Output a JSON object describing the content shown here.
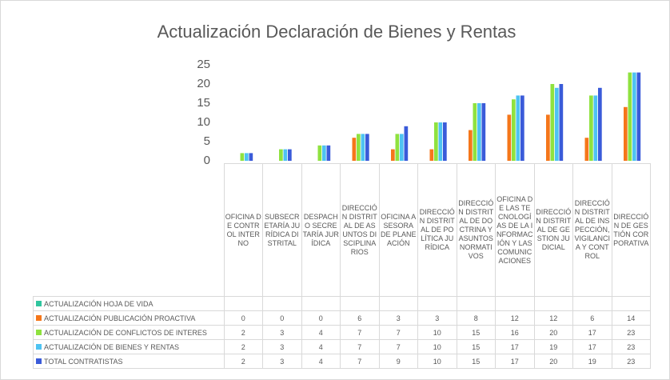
{
  "chart_data": {
    "type": "bar",
    "title": "Actualización Declaración de Bienes y Rentas",
    "categories": [
      "OFICINA DE CONTROL INTERNO",
      "SUBSECRETARÍA JURÍDICA DISTRITAL",
      "DESPACHO SECRETARÍA JURÍDICA",
      "DIRECCIÓN DISTRITAL DE ASUNTOS DISCIPLINARIOS",
      "OFICINA ASESORA DE PLANEACIÓN",
      "DIRECCIÓN DISTRITAL DE POLÍTICA JURÍDICA",
      "DIRECCIÓN DISTRITAL DE DOCTRINA Y ASUNTOS NORMATIVOS",
      "OFICINA DE LAS TECNOLOGÍAS DE LA INFORMACIÓN Y LAS COMUNICACIONES",
      "DIRECCIÓN DISTRITAL DE GESTION JUDICIAL",
      "DIRECCIÓN DISTRITAL DE INSPECCIÓN, VIGILANCIA Y CONTROL",
      "DIRECCIÓN DE GESTIÓN CORPORATIVA"
    ],
    "series": [
      {
        "name": "ACTUALIZACIÓN HOJA DE VIDA",
        "color": "#2fc59e",
        "values": [
          null,
          null,
          null,
          null,
          null,
          null,
          null,
          null,
          null,
          null,
          null
        ]
      },
      {
        "name": "ACTUALIZACIÓN PUBLICACIÓN PROACTIVA",
        "color": "#f5761a",
        "values": [
          0,
          0,
          0,
          6,
          3,
          3,
          8,
          12,
          12,
          6,
          14
        ]
      },
      {
        "name": "ACTUALIZACIÓN DE CONFLICTOS DE INTERES",
        "color": "#8fe23f",
        "values": [
          2,
          3,
          4,
          7,
          7,
          10,
          15,
          16,
          20,
          17,
          23
        ]
      },
      {
        "name": "ACTUALIZACIÓN DE BIENES Y RENTAS",
        "color": "#4ec3f2",
        "values": [
          2,
          3,
          4,
          7,
          7,
          10,
          15,
          17,
          19,
          17,
          23
        ]
      },
      {
        "name": "TOTAL CONTRATISTAS",
        "color": "#3a5bd9",
        "values": [
          2,
          3,
          4,
          7,
          9,
          10,
          15,
          17,
          20,
          19,
          23
        ]
      }
    ],
    "ylim": [
      0,
      25
    ],
    "yticks": [
      0,
      5,
      10,
      15,
      20,
      25
    ],
    "grid": false
  }
}
